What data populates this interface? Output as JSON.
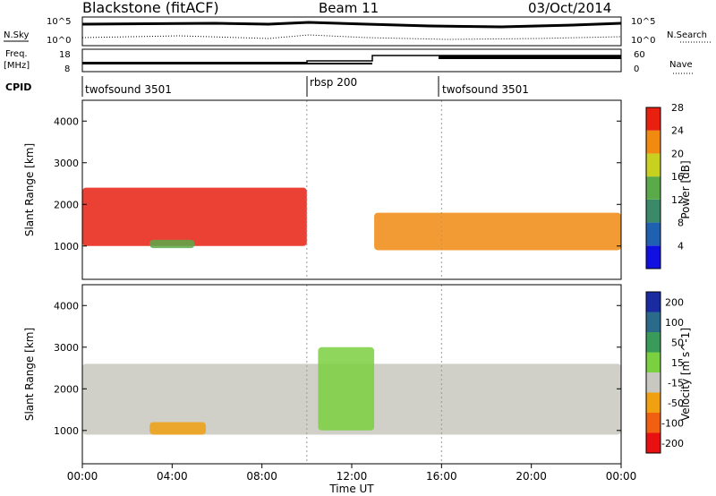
{
  "header": {
    "station": "Blackstone (fitACF)",
    "beam": "Beam 11",
    "date": "03/Oct/2014"
  },
  "top_panels": {
    "nsky_label": "N.Sky",
    "nsky_ticks": [
      "10^5",
      "10^0"
    ],
    "nsearch_label": "N.Search",
    "nsearch_ticks": [
      "10^5",
      "10^0"
    ],
    "freq_label_line1": "Freq.",
    "freq_label_line2": "[MHz]",
    "freq_ticks": [
      "18",
      "8"
    ],
    "nave_label": "Nave",
    "nave_ticks": [
      "60",
      "0"
    ],
    "cpid_label": "CPID",
    "cpid_segments": [
      {
        "name": "twofsound 3501",
        "start_hour": 0,
        "end_hour": 10
      },
      {
        "name": "rbsp 200",
        "start_hour": 10,
        "end_hour": 16
      },
      {
        "name": "twofsound 3501",
        "start_hour": 16,
        "end_hour": 24
      }
    ]
  },
  "chart_data": [
    {
      "type": "heatmap",
      "title": "",
      "xlabel": "Time UT",
      "ylabel": "Slant Range [km]",
      "colorbar_label": "Power [dB]",
      "xlim": [
        0,
        24
      ],
      "ylim": [
        200,
        4500
      ],
      "xticks": [
        "00:00",
        "04:00",
        "08:00",
        "12:00",
        "16:00",
        "20:00",
        "00:00"
      ],
      "yticks": [
        1000,
        2000,
        3000,
        4000
      ],
      "colorbar_ticks": [
        "4",
        "8",
        "12",
        "16",
        "20",
        "24",
        "28"
      ],
      "colorbar_colors": [
        "#1010e0",
        "#2060b0",
        "#3a8a6a",
        "#5aaa4a",
        "#c8d020",
        "#f08a10",
        "#e82010"
      ],
      "features": [
        {
          "band": "main echo band",
          "hours": [
            0,
            10
          ],
          "range_km": [
            1000,
            2400
          ],
          "power_db": 28
        },
        {
          "patch": "isolated patch",
          "hours": [
            3,
            5
          ],
          "range_km": [
            950,
            1150
          ],
          "power_db": 16
        },
        {
          "band": "main echo band",
          "hours": [
            13,
            24
          ],
          "range_km": [
            900,
            1800
          ],
          "power_db": 24
        }
      ]
    },
    {
      "type": "heatmap",
      "title": "",
      "xlabel": "Time UT",
      "ylabel": "Slant Range [km]",
      "colorbar_label": "Velocity [m s^-1]",
      "xlim": [
        0,
        24
      ],
      "ylim": [
        200,
        4500
      ],
      "xticks": [
        "00:00",
        "04:00",
        "08:00",
        "12:00",
        "16:00",
        "20:00",
        "00:00"
      ],
      "yticks": [
        1000,
        2000,
        3000,
        4000
      ],
      "colorbar_ticks": [
        "200",
        "100",
        "50",
        "15",
        "-15",
        "-50",
        "-100",
        "-200"
      ],
      "colorbar_colors": [
        "#1a2aa0",
        "#2a6a8a",
        "#3a9a5a",
        "#7ad040",
        "#c8c8c0",
        "#f0a010",
        "#f06010",
        "#e81010"
      ],
      "features": [
        {
          "band": "ground scatter",
          "hours": [
            0,
            24
          ],
          "range_km": [
            900,
            2600
          ],
          "velocity": 0
        },
        {
          "patch": "negative velocity patch",
          "hours": [
            3,
            5.5
          ],
          "range_km": [
            900,
            1200
          ],
          "velocity": -50
        },
        {
          "patch": "positive velocity streak",
          "hours": [
            10.5,
            13
          ],
          "range_km": [
            1000,
            3000
          ],
          "velocity": 50
        }
      ]
    }
  ]
}
